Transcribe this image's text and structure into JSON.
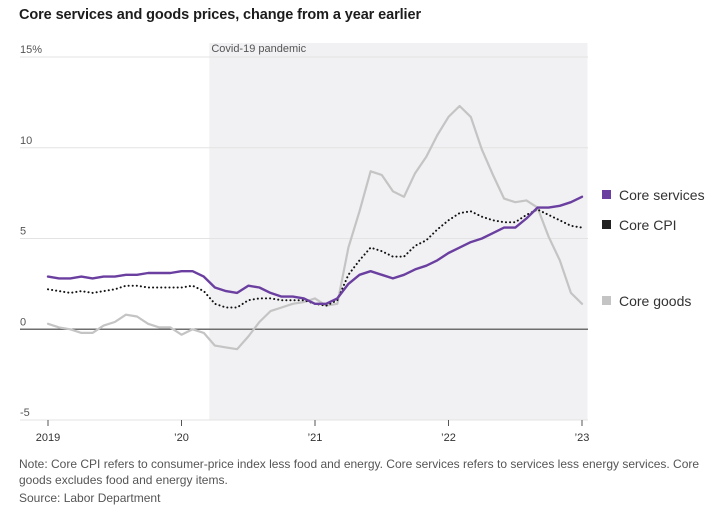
{
  "chart_data": {
    "type": "line",
    "title": "Core services and goods prices, change from a year earlier",
    "ylim": [
      -5,
      15
    ],
    "yticks": [
      {
        "value": 15,
        "label": "15%"
      },
      {
        "value": 10,
        "label": "10"
      },
      {
        "value": 5,
        "label": "5"
      },
      {
        "value": 0,
        "label": "0"
      },
      {
        "value": -5,
        "label": "-5"
      }
    ],
    "xlim": [
      0,
      48
    ],
    "xticks": [
      {
        "value": 0,
        "label": "2019"
      },
      {
        "value": 12,
        "label": "’20"
      },
      {
        "value": 24,
        "label": "’21"
      },
      {
        "value": 36,
        "label": "’22"
      },
      {
        "value": 48,
        "label": "’23"
      }
    ],
    "shaded_region": {
      "start": 14.5,
      "end": 48.5,
      "label": "Covid-19 pandemic"
    },
    "series": [
      {
        "name": "Core services",
        "color": "#6b3fa0",
        "style": "solid",
        "values": [
          2.9,
          2.8,
          2.8,
          2.9,
          2.8,
          2.9,
          2.9,
          3.0,
          3.0,
          3.1,
          3.1,
          3.1,
          3.2,
          3.2,
          2.9,
          2.3,
          2.1,
          2.0,
          2.4,
          2.3,
          2.0,
          1.8,
          1.8,
          1.7,
          1.4,
          1.4,
          1.7,
          2.5,
          3.0,
          3.2,
          3.0,
          2.8,
          3.0,
          3.3,
          3.5,
          3.8,
          4.2,
          4.5,
          4.8,
          5.0,
          5.3,
          5.6,
          5.6,
          6.1,
          6.7,
          6.7,
          6.8,
          7.0,
          7.3
        ]
      },
      {
        "name": "Core CPI",
        "color": "#111111",
        "style": "dotted",
        "values": [
          2.2,
          2.1,
          2.0,
          2.1,
          2.0,
          2.1,
          2.2,
          2.4,
          2.4,
          2.3,
          2.3,
          2.3,
          2.3,
          2.4,
          2.1,
          1.4,
          1.2,
          1.2,
          1.6,
          1.7,
          1.7,
          1.6,
          1.6,
          1.6,
          1.4,
          1.3,
          1.6,
          3.0,
          3.8,
          4.5,
          4.3,
          4.0,
          4.0,
          4.6,
          4.9,
          5.5,
          6.0,
          6.4,
          6.5,
          6.2,
          6.0,
          5.9,
          5.9,
          6.3,
          6.6,
          6.3,
          6.0,
          5.7,
          5.6
        ]
      },
      {
        "name": "Core goods",
        "color": "#c4c4c4",
        "style": "solid",
        "values": [
          0.3,
          0.1,
          0.0,
          -0.2,
          -0.2,
          0.2,
          0.4,
          0.8,
          0.7,
          0.3,
          0.1,
          0.1,
          -0.3,
          0.0,
          -0.2,
          -0.9,
          -1.0,
          -1.1,
          -0.4,
          0.4,
          1.0,
          1.2,
          1.4,
          1.5,
          1.7,
          1.3,
          1.4,
          4.5,
          6.5,
          8.7,
          8.5,
          7.6,
          7.3,
          8.6,
          9.5,
          10.7,
          11.7,
          12.3,
          11.7,
          9.9,
          8.5,
          7.2,
          7.0,
          7.1,
          6.7,
          5.1,
          3.8,
          2.0,
          1.4
        ]
      }
    ],
    "legend": {
      "placement": "right"
    }
  },
  "note": "Note: Core CPI refers to consumer-price index less food and energy. Core services refers to services less energy services. Core goods excludes food and energy items.",
  "source": "Source: Labor Department"
}
